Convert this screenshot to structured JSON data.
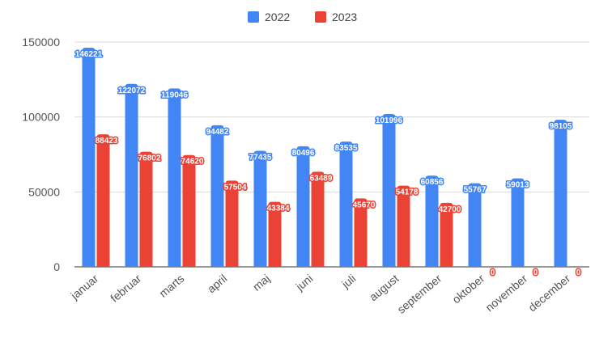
{
  "chart_data": {
    "type": "bar",
    "categories": [
      "januar",
      "februar",
      "marts",
      "april",
      "maj",
      "juni",
      "juli",
      "august",
      "september",
      "oktober",
      "november",
      "december"
    ],
    "series": [
      {
        "name": "2022",
        "color": "#4285f4",
        "values": [
          146221,
          122072,
          119046,
          94482,
          77435,
          80496,
          83535,
          101996,
          60856,
          55767,
          59013,
          98105
        ]
      },
      {
        "name": "2023",
        "color": "#ea4335",
        "values": [
          88423,
          76802,
          74620,
          57504,
          43384,
          63489,
          45670,
          54178,
          42700,
          0,
          0,
          0
        ]
      }
    ],
    "title": "",
    "xlabel": "",
    "ylabel": "",
    "ylim": [
      0,
      150000
    ],
    "yticks": [
      0,
      50000,
      100000,
      150000
    ],
    "grid": true,
    "legend_position": "top",
    "data_labels": true
  }
}
